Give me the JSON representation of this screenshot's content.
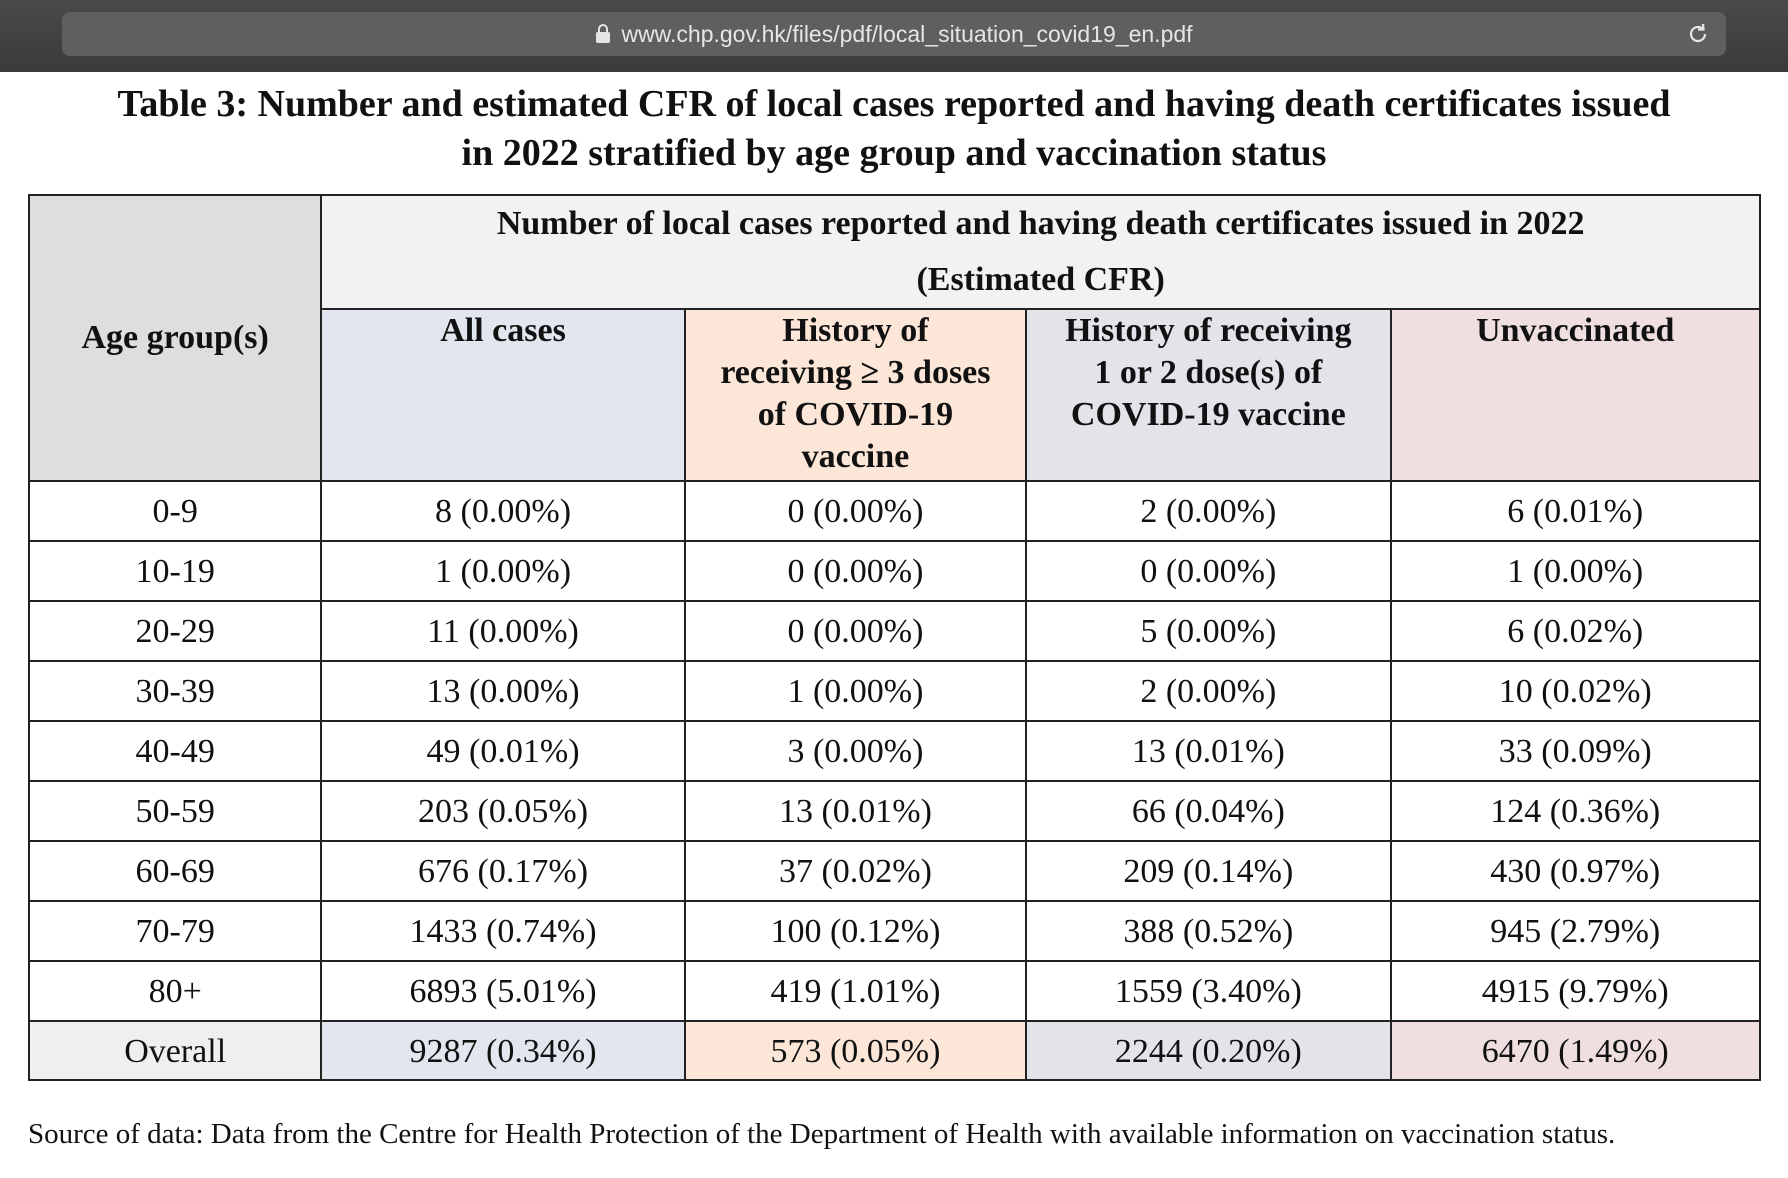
{
  "browser": {
    "url": "www.chp.gov.hk/files/pdf/local_situation_covid19_en.pdf",
    "lock_icon": "lock-icon",
    "reload_icon": "reload-icon"
  },
  "title_line1": "Table 3: Number and estimated CFR of local cases reported and having death certificates issued",
  "title_line2": "in 2022 stratified by age group and vaccination status",
  "table": {
    "age_header": "Age group(s)",
    "group_header_line1": "Number of local cases reported and having death certificates issued in 2022",
    "group_header_line2": "(Estimated CFR)",
    "columns": {
      "all": "All cases",
      "three_line1": "History of",
      "three_line2": "receiving ≥ 3 doses",
      "three_line3": "of COVID-19",
      "three_line4": "vaccine",
      "onetwo_line1": "History of receiving",
      "onetwo_line2": "1 or 2 dose(s) of",
      "onetwo_line3": "COVID-19 vaccine",
      "unvax": "Unvaccinated"
    },
    "rows": [
      {
        "age": "0-9",
        "all": "8 (0.00%)",
        "three": "0 (0.00%)",
        "onetwo": "2 (0.00%)",
        "unvax": "6 (0.01%)"
      },
      {
        "age": "10-19",
        "all": "1 (0.00%)",
        "three": "0 (0.00%)",
        "onetwo": "0 (0.00%)",
        "unvax": "1 (0.00%)"
      },
      {
        "age": "20-29",
        "all": "11 (0.00%)",
        "three": "0 (0.00%)",
        "onetwo": "5 (0.00%)",
        "unvax": "6 (0.02%)"
      },
      {
        "age": "30-39",
        "all": "13 (0.00%)",
        "three": "1 (0.00%)",
        "onetwo": "2 (0.00%)",
        "unvax": "10 (0.02%)"
      },
      {
        "age": "40-49",
        "all": "49 (0.01%)",
        "three": "3 (0.00%)",
        "onetwo": "13 (0.01%)",
        "unvax": "33 (0.09%)"
      },
      {
        "age": "50-59",
        "all": "203 (0.05%)",
        "three": "13 (0.01%)",
        "onetwo": "66 (0.04%)",
        "unvax": "124 (0.36%)"
      },
      {
        "age": "60-69",
        "all": "676 (0.17%)",
        "three": "37 (0.02%)",
        "onetwo": "209 (0.14%)",
        "unvax": "430 (0.97%)"
      },
      {
        "age": "70-79",
        "all": "1433 (0.74%)",
        "three": "100 (0.12%)",
        "onetwo": "388 (0.52%)",
        "unvax": "945 (2.79%)"
      },
      {
        "age": "80+",
        "all": "6893 (5.01%)",
        "three": "419 (1.01%)",
        "onetwo": "1559 (3.40%)",
        "unvax": "4915 (9.79%)"
      }
    ],
    "overall": {
      "age": "Overall",
      "all": "9287 (0.34%)",
      "three": "573 (0.05%)",
      "onetwo": "2244 (0.20%)",
      "unvax": "6470 (1.49%)"
    }
  },
  "source": "Source of data: Data from the Centre for Health Protection of the Department of Health with available information on vaccination status."
}
